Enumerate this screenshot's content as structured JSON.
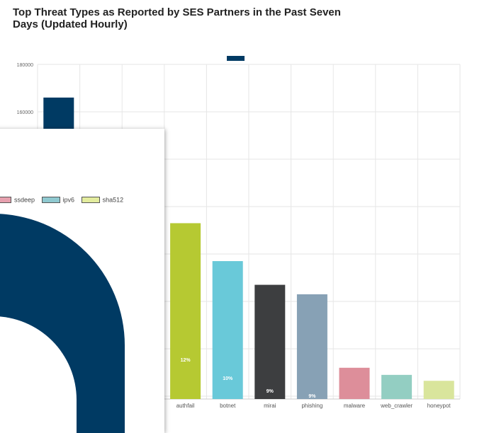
{
  "chart_data": [
    {
      "type": "bar",
      "title": "Top Threat Types as Reported by SES Partners in the Past Seven Days (Updated Hourly)",
      "legend_placement": "top-center",
      "grid": true,
      "ylim": [
        40000,
        180000
      ],
      "yticks": [
        "180000",
        "160000"
      ],
      "categories": [
        "",
        "",
        "",
        "authfail",
        "botnet",
        "mirai",
        "phishing",
        "malware",
        "web_crawler",
        "honeypot"
      ],
      "values": [
        166000,
        null,
        null,
        113000,
        97000,
        87000,
        83000,
        52000,
        49000,
        46500
      ],
      "data_labels": [
        "",
        "",
        "",
        "12%",
        "10%",
        "9%",
        "9%",
        "",
        "",
        ""
      ],
      "colors": [
        "#003a63",
        "",
        "",
        "#b6c932",
        "#69c9d9",
        "#3d3e40",
        "#87a1b5",
        "#dd8e9a",
        "#93cec2",
        "#d9e59c"
      ],
      "label_colors": [
        "",
        "",
        "",
        "#ffffff",
        "#ffffff",
        "#ffffff",
        "#ffffff",
        "",
        "",
        ""
      ]
    },
    {
      "type": "pie",
      "legend_placement": "top",
      "legend": [
        {
          "name": "ssdeep",
          "color": "#e6a0ae"
        },
        {
          "name": "ipv6",
          "color": "#8fc9d0"
        },
        {
          "name": "sha512",
          "color": "#e3ec9e"
        }
      ],
      "dominant_color": "#003a63"
    }
  ]
}
